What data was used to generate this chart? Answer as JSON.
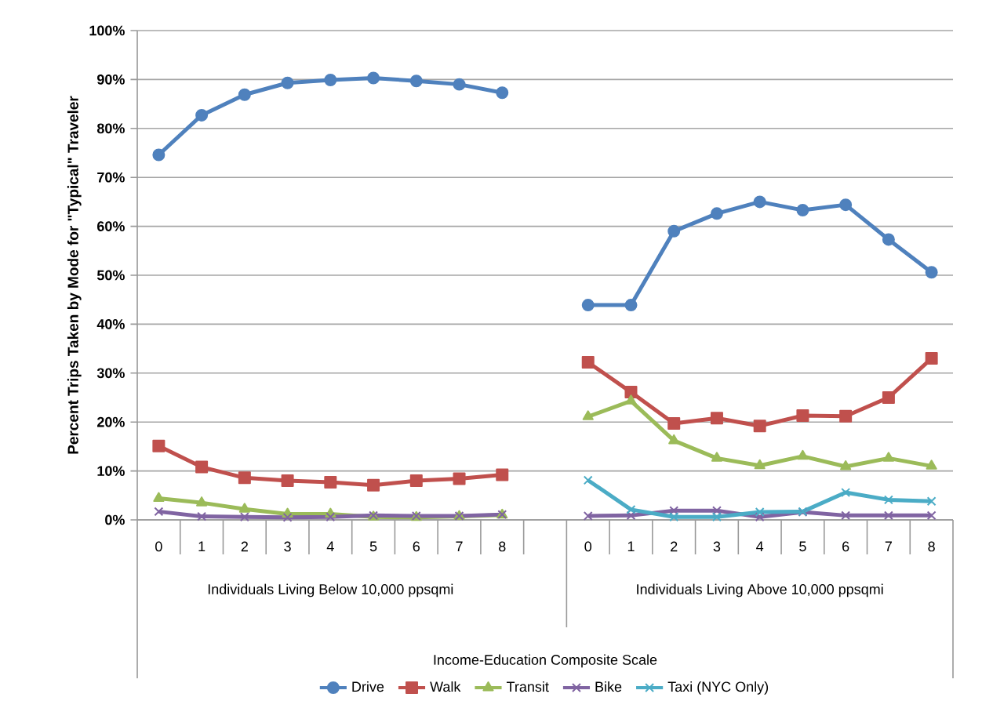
{
  "chart_data": {
    "type": "line",
    "ylabel": "Percent Trips Taken by Mode for \"Typical\" Traveler",
    "categories": [
      "0",
      "1",
      "2",
      "3",
      "4",
      "5",
      "6",
      "7",
      "8",
      null,
      "0",
      "1",
      "2",
      "3",
      "4",
      "5",
      "6",
      "7",
      "8"
    ],
    "annotations": [
      "Individuals Living Below 10,000 ppsqmi",
      "Individuals Living Above 10,000 ppsqmi",
      "Income-Education Composite Scale"
    ],
    "ylim": [
      0,
      100
    ],
    "yticks": [
      {
        "value": 0,
        "label": "0%"
      },
      {
        "value": 10,
        "label": "10%"
      },
      {
        "value": 20,
        "label": "20%"
      },
      {
        "value": 30,
        "label": "30%"
      },
      {
        "value": 40,
        "label": "40%"
      },
      {
        "value": 50,
        "label": "50%"
      },
      {
        "value": 60,
        "label": "60%"
      },
      {
        "value": 70,
        "label": "70%"
      },
      {
        "value": 80,
        "label": "80%"
      },
      {
        "value": 90,
        "label": "90%"
      },
      {
        "value": 100,
        "label": "100%"
      }
    ],
    "grid": "y",
    "legend": "bottom",
    "series": [
      {
        "name": "Drive",
        "color": "#4f81bd",
        "marker": "circle",
        "values": [
          74.6,
          82.7,
          86.9,
          89.3,
          89.9,
          90.3,
          89.7,
          89.0,
          87.3,
          null,
          43.9,
          43.9,
          59.0,
          62.6,
          65.0,
          63.3,
          64.4,
          57.3,
          50.6
        ]
      },
      {
        "name": "Walk",
        "color": "#c0504d",
        "marker": "square",
        "values": [
          15.1,
          10.8,
          8.6,
          8.0,
          7.7,
          7.1,
          8.0,
          8.4,
          9.2,
          null,
          32.2,
          26.1,
          19.7,
          20.8,
          19.2,
          21.3,
          21.2,
          25.0,
          33.0
        ]
      },
      {
        "name": "Transit",
        "color": "#9bbb59",
        "marker": "triangle",
        "values": [
          4.4,
          3.5,
          2.2,
          1.2,
          1.2,
          0.6,
          0.5,
          0.7,
          1.0,
          null,
          21.1,
          24.3,
          16.2,
          12.6,
          11.1,
          13.0,
          10.9,
          12.6,
          11.0
        ]
      },
      {
        "name": "Bike",
        "color": "#8064a2",
        "marker": "cross",
        "values": [
          1.7,
          0.7,
          0.6,
          0.5,
          0.6,
          0.9,
          0.8,
          0.8,
          1.1,
          null,
          0.8,
          0.9,
          1.9,
          1.9,
          0.6,
          1.6,
          0.9,
          0.9,
          0.9
        ]
      },
      {
        "name": "Taxi (NYC Only)",
        "color": "#4bacc6",
        "marker": "cross",
        "values": [
          null,
          null,
          null,
          null,
          null,
          null,
          null,
          null,
          null,
          null,
          8.1,
          2.1,
          0.6,
          0.6,
          1.6,
          1.7,
          5.6,
          4.1,
          3.8
        ]
      }
    ]
  }
}
